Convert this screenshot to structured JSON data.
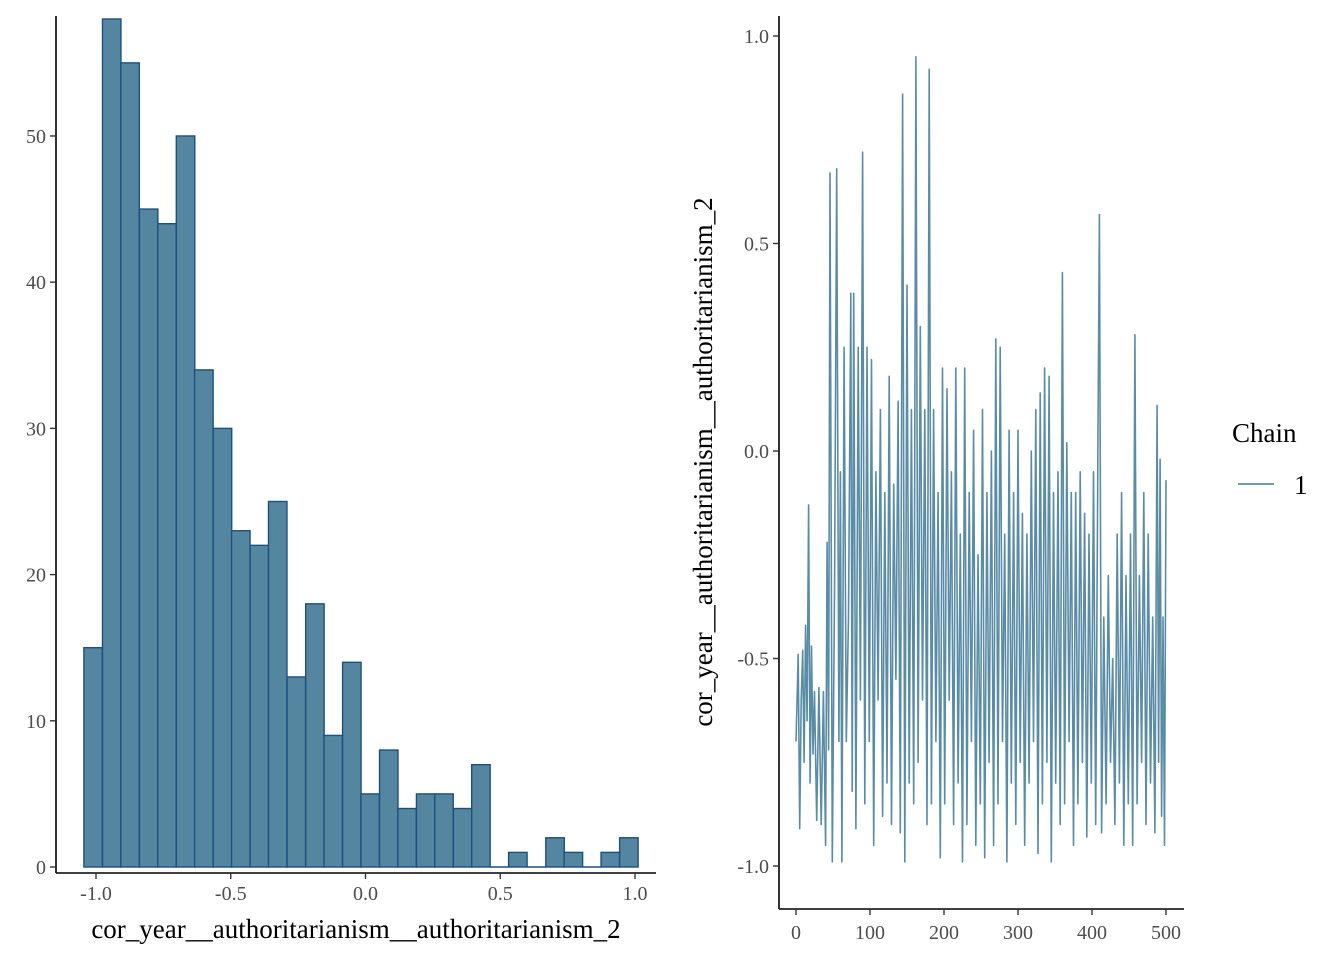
{
  "chart_data": [
    {
      "type": "bar",
      "subtype": "histogram",
      "xlabel": "cor_year__authoritarianism__authoritarianism_2",
      "ylabel": "",
      "xlim": [
        -1.1,
        1.1
      ],
      "ylim": [
        0,
        58
      ],
      "x_ticks": [
        -1.0,
        -0.5,
        0.0,
        0.5,
        1.0
      ],
      "x_tick_labels": [
        "-1.0",
        "-0.5",
        "0.0",
        "0.5",
        "1.0"
      ],
      "y_ticks": [
        0,
        10,
        20,
        30,
        40,
        50
      ],
      "y_tick_labels": [
        "0",
        "10",
        "20",
        "30",
        "40",
        "50"
      ],
      "bin_width": 0.0686,
      "bins": [
        {
          "x0": -1.045,
          "count": 15
        },
        {
          "x0": -0.976,
          "count": 58
        },
        {
          "x0": -0.908,
          "count": 55
        },
        {
          "x0": -0.839,
          "count": 45
        },
        {
          "x0": -0.771,
          "count": 44
        },
        {
          "x0": -0.702,
          "count": 50
        },
        {
          "x0": -0.634,
          "count": 34
        },
        {
          "x0": -0.565,
          "count": 30
        },
        {
          "x0": -0.497,
          "count": 23
        },
        {
          "x0": -0.428,
          "count": 22
        },
        {
          "x0": -0.36,
          "count": 25
        },
        {
          "x0": -0.291,
          "count": 13
        },
        {
          "x0": -0.222,
          "count": 18
        },
        {
          "x0": -0.154,
          "count": 9
        },
        {
          "x0": -0.085,
          "count": 14
        },
        {
          "x0": -0.017,
          "count": 5
        },
        {
          "x0": 0.052,
          "count": 8
        },
        {
          "x0": 0.12,
          "count": 4
        },
        {
          "x0": 0.189,
          "count": 5
        },
        {
          "x0": 0.257,
          "count": 5
        },
        {
          "x0": 0.326,
          "count": 4
        },
        {
          "x0": 0.394,
          "count": 7
        },
        {
          "x0": 0.463,
          "count": 0
        },
        {
          "x0": 0.531,
          "count": 1
        },
        {
          "x0": 0.6,
          "count": 0
        },
        {
          "x0": 0.669,
          "count": 2
        },
        {
          "x0": 0.737,
          "count": 1
        },
        {
          "x0": 0.806,
          "count": 0
        },
        {
          "x0": 0.874,
          "count": 1
        },
        {
          "x0": 0.943,
          "count": 2
        }
      ],
      "colors": {
        "fill": "#55869f",
        "stroke": "#1d5081"
      }
    },
    {
      "type": "line",
      "subtype": "trace",
      "xlabel": "",
      "ylabel": "cor_year__authoritarianism__authoritarianism_2",
      "xlim": [
        -25,
        525
      ],
      "ylim": [
        -1.1,
        1.04
      ],
      "x_ticks": [
        0,
        100,
        200,
        300,
        400,
        500
      ],
      "x_tick_labels": [
        "0",
        "100",
        "200",
        "300",
        "400",
        "500"
      ],
      "y_ticks": [
        -1.0,
        -0.5,
        0.0,
        0.5,
        1.0
      ],
      "y_tick_labels": [
        "-1.0",
        "-0.5",
        "0.0",
        "0.5",
        "1.0"
      ],
      "legend": {
        "title": "Chain",
        "entries": [
          "1"
        ],
        "position": "right"
      },
      "series": [
        {
          "name": "1",
          "color": "#5b8ca6",
          "points": [
            [
              0,
              -0.7
            ],
            [
              3,
              -0.49
            ],
            [
              5,
              -0.91
            ],
            [
              7,
              -0.6
            ],
            [
              9,
              -0.48
            ],
            [
              11,
              -0.75
            ],
            [
              13,
              -0.42
            ],
            [
              15,
              -0.65
            ],
            [
              17,
              -0.13
            ],
            [
              19,
              -0.8
            ],
            [
              21,
              -0.47
            ],
            [
              23,
              -0.73
            ],
            [
              25,
              -0.58
            ],
            [
              28,
              -0.89
            ],
            [
              31,
              -0.57
            ],
            [
              34,
              -0.9
            ],
            [
              37,
              -0.58
            ],
            [
              40,
              -0.95
            ],
            [
              42,
              -0.22
            ],
            [
              44,
              -0.72
            ],
            [
              46,
              0.67
            ],
            [
              49,
              -0.99
            ],
            [
              52,
              -0.35
            ],
            [
              55,
              0.68
            ],
            [
              58,
              -0.7
            ],
            [
              60,
              -0.05
            ],
            [
              62,
              -0.99
            ],
            [
              65,
              0.25
            ],
            [
              68,
              -0.7
            ],
            [
              71,
              -0.4
            ],
            [
              74,
              0.38
            ],
            [
              76,
              -0.82
            ],
            [
              78,
              0.38
            ],
            [
              81,
              -0.91
            ],
            [
              84,
              0.25
            ],
            [
              87,
              -0.6
            ],
            [
              90,
              0.72
            ],
            [
              93,
              -0.85
            ],
            [
              96,
              0.25
            ],
            [
              99,
              -0.7
            ],
            [
              102,
              0.22
            ],
            [
              105,
              -0.95
            ],
            [
              108,
              -0.05
            ],
            [
              111,
              -0.6
            ],
            [
              114,
              0.1
            ],
            [
              117,
              -0.88
            ],
            [
              120,
              -0.1
            ],
            [
              123,
              -0.8
            ],
            [
              126,
              0.18
            ],
            [
              129,
              -0.9
            ],
            [
              132,
              -0.08
            ],
            [
              135,
              -0.55
            ],
            [
              138,
              0.12
            ],
            [
              141,
              -0.92
            ],
            [
              144,
              0.86
            ],
            [
              147,
              -0.99
            ],
            [
              150,
              0.4
            ],
            [
              153,
              -0.8
            ],
            [
              156,
              0.1
            ],
            [
              159,
              -0.85
            ],
            [
              162,
              0.95
            ],
            [
              165,
              -0.75
            ],
            [
              168,
              0.3
            ],
            [
              171,
              -0.6
            ],
            [
              174,
              0.1
            ],
            [
              177,
              -0.9
            ],
            [
              180,
              0.92
            ],
            [
              183,
              -0.85
            ],
            [
              186,
              0.1
            ],
            [
              189,
              -0.7
            ],
            [
              192,
              -0.1
            ],
            [
              195,
              -0.98
            ],
            [
              198,
              0.2
            ],
            [
              201,
              -0.85
            ],
            [
              204,
              0.15
            ],
            [
              207,
              -0.6
            ],
            [
              210,
              -0.05
            ],
            [
              213,
              -0.9
            ],
            [
              216,
              0.2
            ],
            [
              219,
              -0.8
            ],
            [
              222,
              -0.2
            ],
            [
              225,
              -0.99
            ],
            [
              228,
              0.2
            ],
            [
              231,
              -0.9
            ],
            [
              234,
              -0.1
            ],
            [
              237,
              -0.7
            ],
            [
              240,
              0.05
            ],
            [
              243,
              -0.95
            ],
            [
              246,
              -0.25
            ],
            [
              249,
              -0.85
            ],
            [
              252,
              0.1
            ],
            [
              255,
              -0.98
            ],
            [
              258,
              -0.1
            ],
            [
              261,
              -0.75
            ],
            [
              264,
              0.0
            ],
            [
              267,
              -0.95
            ],
            [
              270,
              0.27
            ],
            [
              273,
              -0.85
            ],
            [
              276,
              0.25
            ],
            [
              279,
              -0.7
            ],
            [
              282,
              -0.2
            ],
            [
              285,
              -0.99
            ],
            [
              288,
              0.05
            ],
            [
              291,
              -0.8
            ],
            [
              294,
              -0.1
            ],
            [
              297,
              -0.9
            ],
            [
              300,
              0.05
            ],
            [
              303,
              -0.75
            ],
            [
              306,
              -0.15
            ],
            [
              309,
              -0.95
            ],
            [
              312,
              -0.2
            ],
            [
              315,
              -0.8
            ],
            [
              318,
              0.0
            ],
            [
              321,
              -0.7
            ],
            [
              324,
              0.1
            ],
            [
              327,
              -0.97
            ],
            [
              330,
              0.14
            ],
            [
              333,
              -0.85
            ],
            [
              336,
              0.2
            ],
            [
              339,
              -0.75
            ],
            [
              342,
              0.18
            ],
            [
              345,
              -0.99
            ],
            [
              348,
              -0.1
            ],
            [
              351,
              -0.8
            ],
            [
              354,
              -0.05
            ],
            [
              357,
              -0.9
            ],
            [
              360,
              0.43
            ],
            [
              363,
              -0.85
            ],
            [
              366,
              0.02
            ],
            [
              369,
              -0.7
            ],
            [
              372,
              -0.1
            ],
            [
              375,
              -0.95
            ],
            [
              378,
              -0.1
            ],
            [
              381,
              -0.85
            ],
            [
              384,
              -0.05
            ],
            [
              387,
              -0.75
            ],
            [
              390,
              -0.15
            ],
            [
              393,
              -0.93
            ],
            [
              396,
              -0.2
            ],
            [
              399,
              -0.8
            ],
            [
              402,
              -0.05
            ],
            [
              405,
              -0.9
            ],
            [
              408,
              0.0
            ],
            [
              410,
              0.57
            ],
            [
              413,
              -0.92
            ],
            [
              416,
              -0.4
            ],
            [
              419,
              -0.85
            ],
            [
              422,
              -0.3
            ],
            [
              425,
              -0.75
            ],
            [
              428,
              -0.5
            ],
            [
              431,
              -0.9
            ],
            [
              434,
              -0.2
            ],
            [
              437,
              -0.8
            ],
            [
              440,
              -0.1
            ],
            [
              443,
              -0.95
            ],
            [
              446,
              -0.3
            ],
            [
              449,
              -0.85
            ],
            [
              452,
              -0.2
            ],
            [
              455,
              -0.95
            ],
            [
              458,
              0.28
            ],
            [
              461,
              -0.85
            ],
            [
              464,
              -0.3
            ],
            [
              467,
              -0.75
            ],
            [
              470,
              -0.1
            ],
            [
              473,
              -0.9
            ],
            [
              476,
              -0.2
            ],
            [
              479,
              -0.8
            ],
            [
              482,
              -0.4
            ],
            [
              485,
              -0.92
            ],
            [
              488,
              0.11
            ],
            [
              490,
              -0.75
            ],
            [
              492,
              -0.02
            ],
            [
              494,
              -0.88
            ],
            [
              496,
              -0.4
            ],
            [
              498,
              -0.95
            ],
            [
              500,
              -0.07
            ]
          ]
        }
      ]
    }
  ]
}
